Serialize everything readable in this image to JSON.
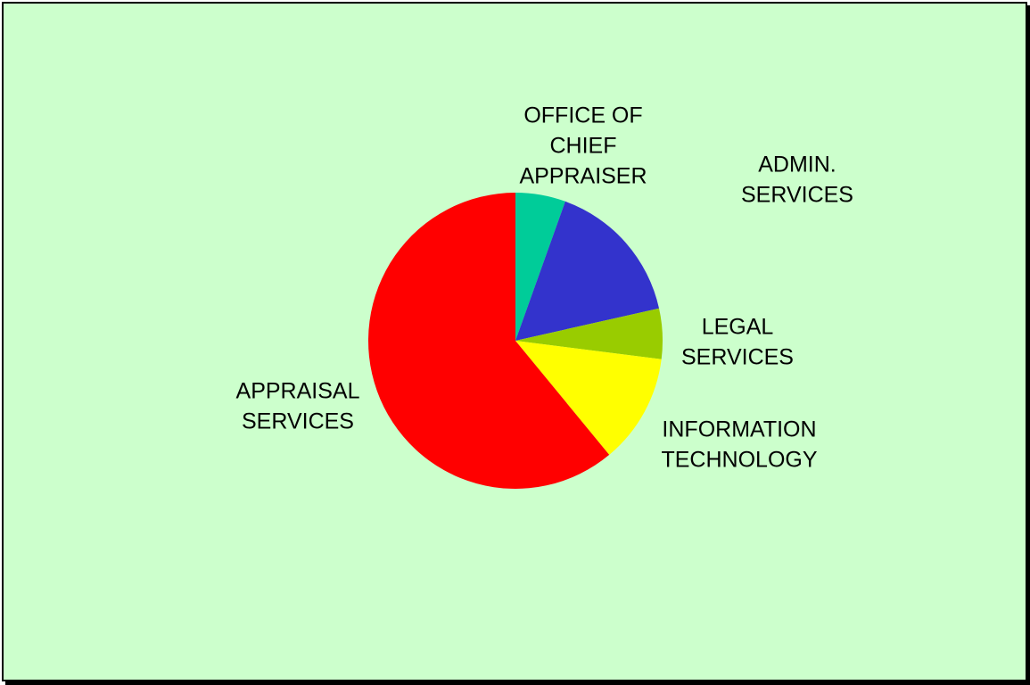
{
  "chart_data": {
    "type": "pie",
    "title": "",
    "start_angle": "12 o'clock",
    "direction": "clockwise",
    "grid": false,
    "legend": "none",
    "slices": [
      {
        "label": "OFFICE OF CHIEF APPRAISER",
        "lines": [
          "OFFICE OF",
          "CHIEF",
          "APPRAISER"
        ],
        "value": 5.5,
        "color": "#00cc99"
      },
      {
        "label": "ADMIN. SERVICES",
        "lines": [
          "ADMIN.",
          "SERVICES"
        ],
        "value": 16.0,
        "color": "#3333cc"
      },
      {
        "label": "LEGAL SERVICES",
        "lines": [
          "LEGAL",
          "SERVICES"
        ],
        "value": 5.5,
        "color": "#99cc00"
      },
      {
        "label": "INFORMATION TECHNOLOGY",
        "lines": [
          "INFORMATION",
          "TECHNOLOGY"
        ],
        "value": 12.0,
        "color": "#ffff00"
      },
      {
        "label": "APPRAISAL SERVICES",
        "lines": [
          "APPRAISAL",
          "SERVICES"
        ],
        "value": 61.0,
        "color": "#ff0000"
      }
    ]
  }
}
